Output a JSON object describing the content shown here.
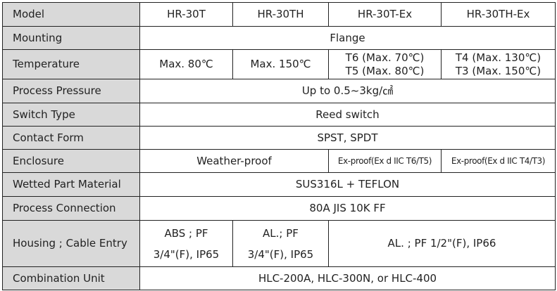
{
  "header": {
    "label": "Model",
    "models": [
      "HR-30T",
      "HR-30TH",
      "HR-30T-Ex",
      "HR-30TH-Ex"
    ]
  },
  "rows": {
    "mounting": {
      "label": "Mounting",
      "value": "Flange"
    },
    "temperature": {
      "label": "Temperature",
      "values": [
        "Max. 80℃",
        "Max. 150℃",
        "T6 (Max. 70℃)",
        "T5 (Max. 80℃)",
        "T4 (Max. 130℃)",
        "T3 (Max. 150℃)"
      ]
    },
    "pressure": {
      "label": "Process Pressure",
      "value": "Up to 0.5~3kg/㎠"
    },
    "switch": {
      "label": "Switch Type",
      "value": "Reed switch"
    },
    "contact": {
      "label": "Contact Form",
      "value": "SPST, SPDT"
    },
    "enclosure": {
      "label": "Enclosure",
      "values": [
        "Weather-proof",
        "Ex-proof(Ex d IIC T6/T5)",
        "Ex-proof(Ex d IIC T4/T3)"
      ]
    },
    "wetted": {
      "label": "Wetted Part Material",
      "value": "SUS316L + TEFLON"
    },
    "connection": {
      "label": "Process Connection",
      "value": "80A JIS 10K FF"
    },
    "housing": {
      "label": "Housing ; Cable Entry",
      "values": [
        "ABS ; PF",
        "3/4\"(F), IP65",
        "AL.; PF",
        "3/4\"(F), IP65",
        "AL. ; PF 1/2\"(F), IP66"
      ]
    },
    "combination": {
      "label": "Combination Unit",
      "value": "HLC-200A, HLC-300N, or HLC-400"
    }
  }
}
